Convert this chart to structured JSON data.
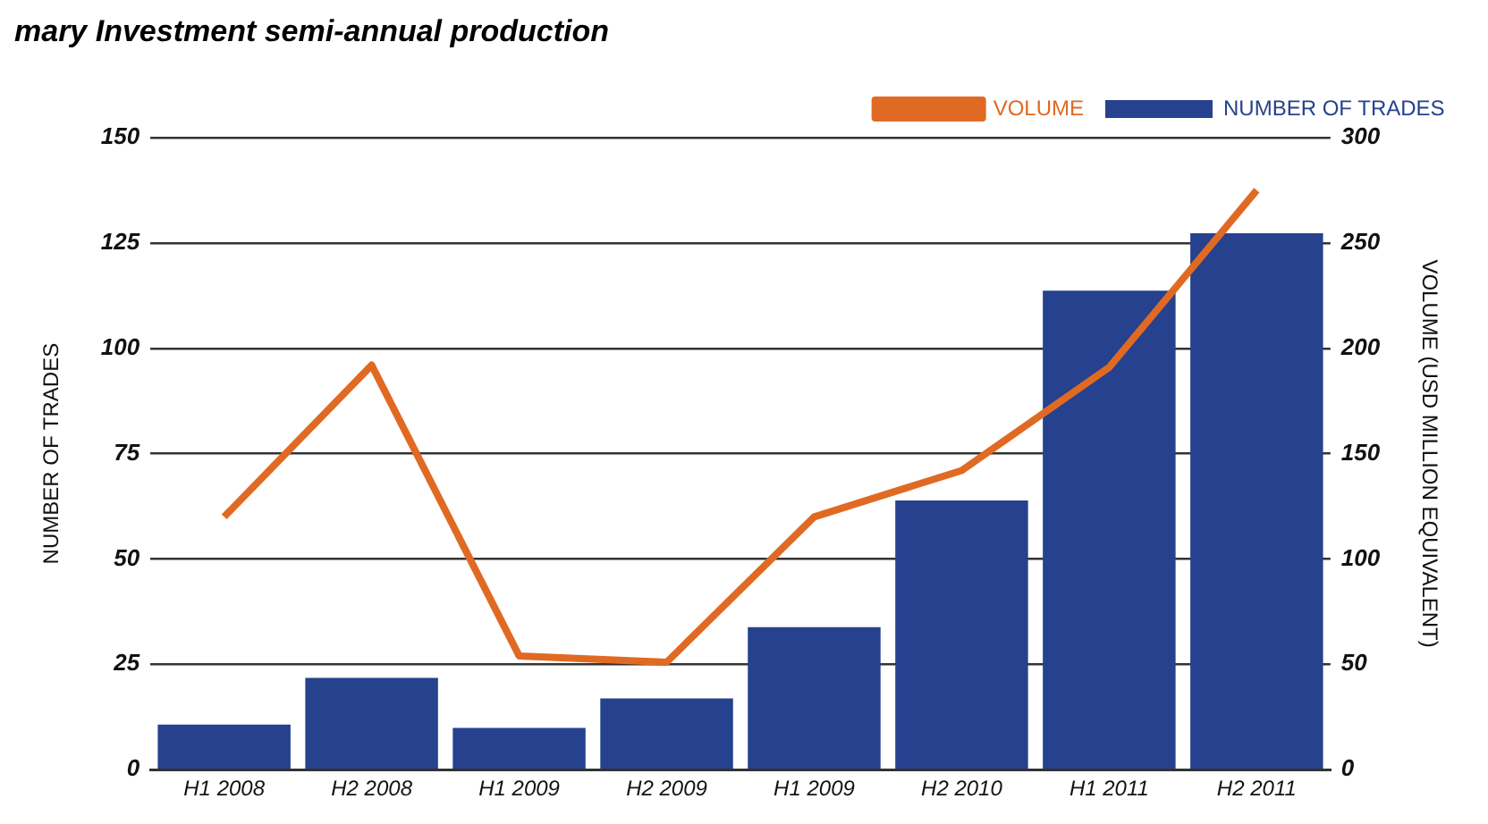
{
  "chart_data": {
    "type": "bar",
    "title": "mary Investment semi-annual production",
    "ylabel": "NUMBER OF TRADES",
    "y2label": "VOLUME (USD MILLION EQUIVALENT)",
    "categories": [
      "H1 2008",
      "H2 2008",
      "H1 2009",
      "H2 2009",
      "H1 2009",
      "H2 2010",
      "H1 2011",
      "H2 2011"
    ],
    "series": [
      {
        "name": "NUMBER OF TRADES",
        "color": "#26418e",
        "values": [
          10.7,
          21.8,
          9.9,
          16.9,
          33.8,
          63.9,
          113.7,
          127.3
        ]
      },
      {
        "name": "VOLUME",
        "type": "line",
        "axis": "y2",
        "color": "#e06a23",
        "values": [
          120,
          192,
          54,
          51,
          120,
          142,
          191,
          275
        ]
      }
    ],
    "ylim": [
      0,
      150
    ],
    "yticks": [
      0,
      25,
      50,
      75,
      100,
      125,
      150
    ],
    "y2lim": [
      0,
      300
    ],
    "y2ticks": [
      0,
      50,
      100,
      150,
      200,
      250,
      300
    ],
    "grid": "y",
    "legend": "top right",
    "line_style": "solid",
    "marker": "none"
  }
}
